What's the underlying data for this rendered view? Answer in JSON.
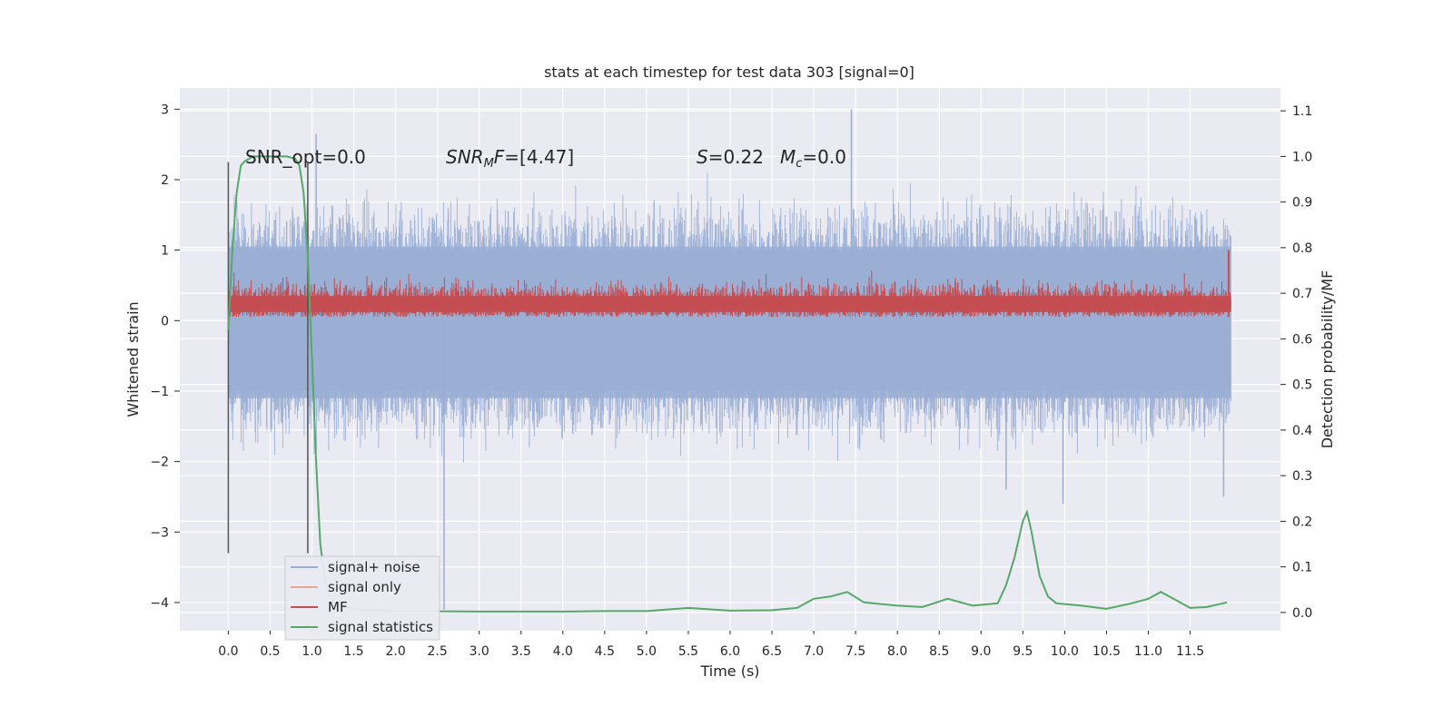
{
  "chart_data": {
    "type": "line",
    "title": "stats at each timestep for test data 303 [signal=0]",
    "xlabel": "Time (s)",
    "ylabel": "Whitened strain",
    "y2label": "Detection probability/MF",
    "xlim": [
      -0.58,
      12.58
    ],
    "ylim": [
      -4.4,
      3.3
    ],
    "y2lim": [
      -0.04,
      1.15
    ],
    "xticks": [
      0.0,
      0.5,
      1.0,
      1.5,
      2.0,
      2.5,
      3.0,
      3.5,
      4.0,
      4.5,
      5.0,
      5.5,
      6.0,
      6.5,
      7.0,
      7.5,
      8.0,
      8.5,
      9.0,
      9.5,
      10.0,
      10.5,
      11.0,
      11.5
    ],
    "xtick_labels": [
      "0.0",
      "0.5",
      "1.0",
      "1.5",
      "2.0",
      "2.5",
      "3.0",
      "3.5",
      "4.0",
      "4.5",
      "5.0",
      "5.5",
      "6.0",
      "6.5",
      "7.0",
      "7.5",
      "8.0",
      "8.5",
      "9.0",
      "9.5",
      "10.0",
      "10.5",
      "11.0",
      "11.5"
    ],
    "yticks": [
      -4,
      -3,
      -2,
      -1,
      0,
      1,
      2,
      3
    ],
    "ytick_labels": [
      "−4",
      "−3",
      "−2",
      "−1",
      "0",
      "1",
      "2",
      "3"
    ],
    "y2ticks": [
      0.0,
      0.1,
      0.2,
      0.3,
      0.4,
      0.5,
      0.6,
      0.7,
      0.8,
      0.9,
      1.0,
      1.1
    ],
    "y2tick_labels": [
      "0.0",
      "0.1",
      "0.2",
      "0.3",
      "0.4",
      "0.5",
      "0.6",
      "0.7",
      "0.8",
      "0.9",
      "1.0",
      "1.1"
    ],
    "grid": true,
    "legend_position": "lower-left",
    "annotations": {
      "snr_opt": "SNR_opt=0.0",
      "snr_mf": "=[4.47]",
      "s_label": "=0.22",
      "mc_label": "=0.0"
    },
    "series": [
      {
        "name": "signal+ noise",
        "color": "#9aaed4",
        "kind": "noise-band",
        "x_range": [
          0.0,
          11.99
        ],
        "approx_band": [
          -1.5,
          1.5
        ],
        "approx_peaks": [
          3.0,
          -4.1
        ]
      },
      {
        "name": "signal only",
        "color": "#e9a88f",
        "kind": "line",
        "values": []
      },
      {
        "name": "MF",
        "color": "#c44e52",
        "kind": "noise-band",
        "x_range": [
          0.0,
          11.99
        ],
        "approx_band": [
          0.0,
          0.6
        ],
        "approx_peaks": [
          1.0
        ]
      },
      {
        "name": "signal statistics",
        "color": "#55a868",
        "kind": "line",
        "axis": "right",
        "x": [
          0.0,
          0.05,
          0.1,
          0.15,
          0.2,
          0.3,
          0.4,
          0.6,
          0.7,
          0.8,
          0.85,
          0.9,
          0.95,
          1.0,
          1.05,
          1.1,
          1.15,
          1.2,
          1.25,
          1.3,
          1.4,
          1.6,
          2.0,
          3.0,
          4.0,
          4.5,
          5.0,
          5.5,
          6.0,
          6.5,
          6.8,
          7.0,
          7.2,
          7.4,
          7.6,
          8.0,
          8.3,
          8.6,
          8.9,
          9.2,
          9.3,
          9.4,
          9.5,
          9.55,
          9.6,
          9.7,
          9.8,
          9.9,
          10.2,
          10.5,
          10.8,
          11.0,
          11.15,
          11.3,
          11.5,
          11.7,
          11.94
        ],
        "values": [
          0.62,
          0.8,
          0.92,
          0.98,
          0.99,
          1.0,
          1.0,
          1.0,
          1.0,
          0.995,
          0.98,
          0.92,
          0.78,
          0.56,
          0.33,
          0.15,
          0.08,
          0.04,
          0.025,
          0.018,
          0.012,
          0.006,
          0.003,
          0.002,
          0.002,
          0.003,
          0.003,
          0.01,
          0.004,
          0.005,
          0.01,
          0.03,
          0.035,
          0.045,
          0.022,
          0.015,
          0.012,
          0.03,
          0.015,
          0.02,
          0.06,
          0.12,
          0.2,
          0.22,
          0.18,
          0.08,
          0.035,
          0.02,
          0.015,
          0.008,
          0.02,
          0.03,
          0.045,
          0.03,
          0.01,
          0.012,
          0.022
        ]
      }
    ],
    "vertical_markers_x": [
      0.0,
      0.95
    ]
  }
}
